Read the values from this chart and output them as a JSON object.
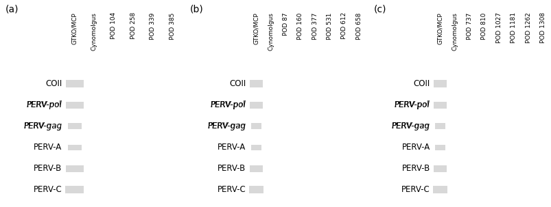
{
  "panels": [
    {
      "label": "(a)",
      "col_labels": [
        "GTKO/MCP",
        "Cynomolgus",
        "POD 104",
        "POD 258",
        "POD 339",
        "POD 385"
      ],
      "n_cols": 6
    },
    {
      "label": "(b)",
      "col_labels": [
        "GTKO/MCP",
        "Cynomolgus",
        "POD 87",
        "POD 160",
        "POD 377",
        "POD 531",
        "POD 612",
        "POD 658"
      ],
      "n_cols": 8
    },
    {
      "label": "(c)",
      "col_labels": [
        "GTKO/MCP",
        "Cynomolgus",
        "POD 737",
        "POD 810",
        "POD 1027",
        "POD 1181",
        "POD 1262",
        "POD 1308"
      ],
      "n_cols": 8
    }
  ],
  "row_labels_parts": [
    [
      [
        "COII",
        "normal"
      ]
    ],
    [
      [
        "PERV-",
        "normal"
      ],
      [
        "pol",
        "italic"
      ]
    ],
    [
      [
        "PERV-",
        "normal"
      ],
      [
        "gag",
        "italic"
      ]
    ],
    [
      [
        "PERV-A",
        "normal"
      ]
    ],
    [
      [
        "PERV-B",
        "normal"
      ]
    ],
    [
      [
        "PERV-C",
        "normal"
      ]
    ]
  ],
  "band_color": "#d8d8d8",
  "gel_bg": "#0a0a0a",
  "white_bg": "#ffffff",
  "band_heights": {
    "COII": 0.38,
    "PERV-pol": 0.35,
    "PERV-gag": 0.3,
    "PERV-A": 0.28,
    "PERV-B": 0.35,
    "PERV-C": 0.38
  },
  "band_widths_frac": {
    "COII": 0.9,
    "PERV-pol": 0.9,
    "PERV-gag": 0.7,
    "PERV-A": 0.7,
    "PERV-B": 0.9,
    "PERV-C": 0.95
  },
  "label_fontsize": 8.5,
  "panel_label_fontsize": 10,
  "col_label_fontsize": 6.5,
  "row_label_names": [
    "COII",
    "PERV-pol",
    "PERV-gag",
    "PERV-A",
    "PERV-B",
    "PERV-C"
  ]
}
